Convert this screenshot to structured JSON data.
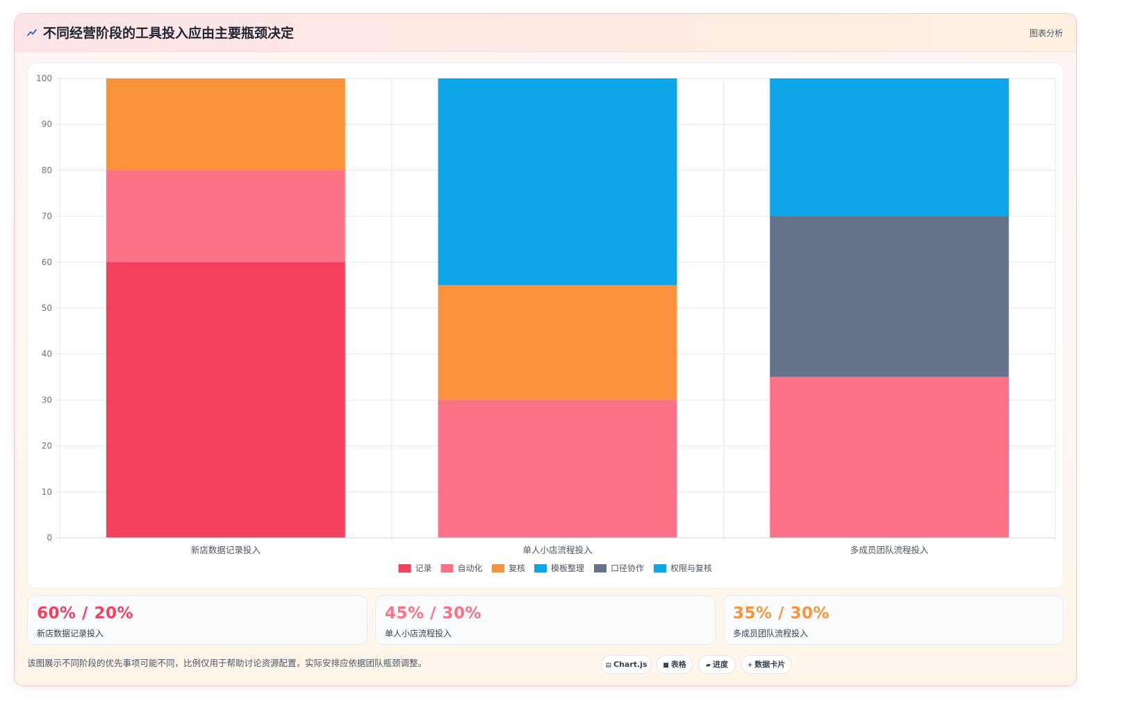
{
  "header": {
    "icon": "chart-line-icon",
    "title": "不同经营阶段的工具投入应由主要瓶颈决定",
    "right_label": "图表分析"
  },
  "colors": {
    "记录": "#f2405e",
    "自动化": "#fb7185",
    "复核": "#fb923c",
    "模板整理": "#0ea5e9",
    "口径协作": "#64748b",
    "权限与复核": "#0ea5e9"
  },
  "chart_data": {
    "type": "bar",
    "stacked": true,
    "categories": [
      "新店数据记录投入",
      "单人小店流程投入",
      "多成员团队流程投入"
    ],
    "series": [
      {
        "name": "记录",
        "color": "#f2405e",
        "values": [
          60,
          0,
          0
        ]
      },
      {
        "name": "自动化",
        "color": "#fb7185",
        "values": [
          20,
          30,
          35
        ]
      },
      {
        "name": "复核",
        "color": "#fb923c",
        "values": [
          20,
          25,
          0
        ]
      },
      {
        "name": "模板整理",
        "color": "#0ea5e9",
        "values": [
          0,
          45,
          0
        ]
      },
      {
        "name": "口径协作",
        "color": "#64748b",
        "values": [
          0,
          0,
          35
        ]
      },
      {
        "name": "权限与复核",
        "color": "#0ea5e9",
        "values": [
          0,
          0,
          30
        ]
      }
    ],
    "ylim": [
      0,
      100
    ],
    "yticks": [
      0,
      10,
      20,
      30,
      40,
      50,
      60,
      70,
      80,
      90,
      100
    ],
    "grid": true,
    "legend_position": "bottom"
  },
  "stats": [
    {
      "value": "60% / 20%",
      "label": "新店数据记录投入",
      "color": "#f2405e"
    },
    {
      "value": "45% / 30%",
      "label": "单人小店流程投入",
      "color": "#fb7185"
    },
    {
      "value": "35% / 30%",
      "label": "多成员团队流程投入",
      "color": "#fb923c"
    }
  ],
  "footnote": "该图展示不同阶段的优先事项可能不同，比例仅用于帮助讨论资源配置，实际安排应依据团队瓶颈调整。",
  "chips": [
    {
      "glyph": "▤",
      "label": "Chart.js",
      "icon": "chart-icon"
    },
    {
      "glyph": "■",
      "label": "表格",
      "icon": "table-icon"
    },
    {
      "glyph": "▰",
      "label": "进度",
      "icon": "progress-icon"
    },
    {
      "glyph": "+",
      "label": "数据卡片",
      "icon": "plus-icon"
    }
  ]
}
